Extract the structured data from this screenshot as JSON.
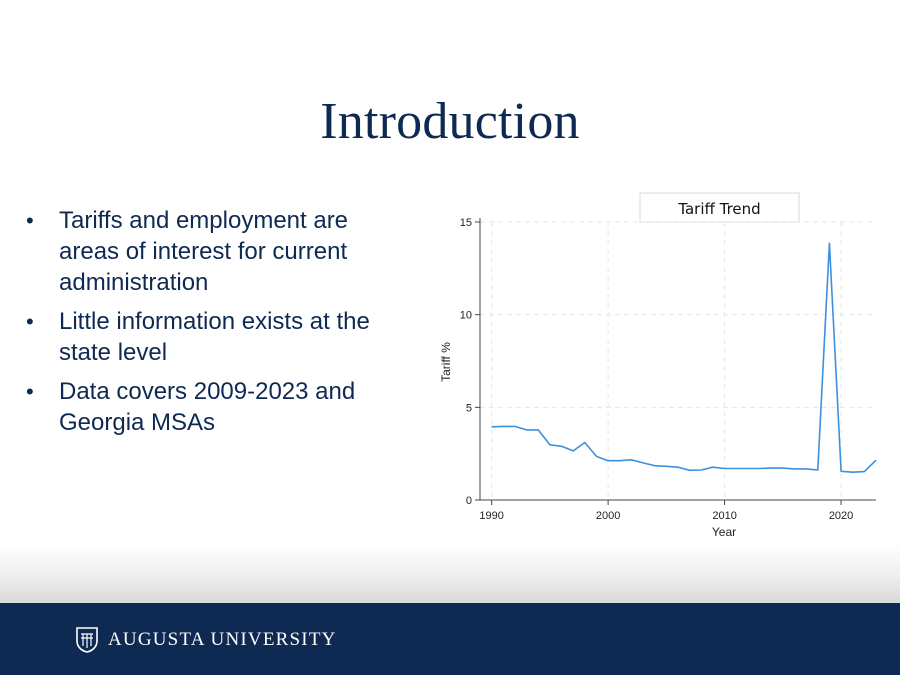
{
  "slide": {
    "title": "Introduction",
    "bullets": [
      "Tariffs and employment are areas of interest for current administration",
      "Little information exists at the state level",
      "Data covers 2009-2023 and Georgia MSAs"
    ],
    "bullet_symbol": "•"
  },
  "footer": {
    "brand": "AUGUSTA UNIVERSITY",
    "background": "#0f2a52",
    "logo_icon": "shield-logo-icon"
  },
  "chart_data": {
    "type": "line",
    "title": "Tariff Trend",
    "xlabel": "Year",
    "ylabel": "Tariff %",
    "xlim": [
      1989,
      2023
    ],
    "ylim": [
      0,
      15
    ],
    "x_ticks": [
      1990,
      2000,
      2010,
      2020
    ],
    "y_ticks": [
      0,
      5,
      10,
      15
    ],
    "grid": true,
    "line_color": "#3d8fe0",
    "series": [
      {
        "x": [
          1990,
          1991,
          1992,
          1993,
          1994,
          1995,
          1996,
          1997,
          1998,
          1999,
          2000,
          2001,
          2002,
          2003,
          2004,
          2005,
          2006,
          2007,
          2008,
          2009,
          2010,
          2011,
          2012,
          2013,
          2014,
          2015,
          2016,
          2017,
          2018,
          2019,
          2020,
          2021,
          2022,
          2023
        ],
        "y": [
          3.95,
          3.97,
          3.97,
          3.78,
          3.78,
          2.98,
          2.9,
          2.65,
          3.1,
          2.35,
          2.12,
          2.12,
          2.17,
          2.0,
          1.85,
          1.82,
          1.77,
          1.6,
          1.62,
          1.77,
          1.7,
          1.7,
          1.7,
          1.7,
          1.72,
          1.72,
          1.68,
          1.68,
          1.62,
          13.85,
          1.55,
          1.5,
          1.53,
          2.15
        ]
      }
    ]
  }
}
